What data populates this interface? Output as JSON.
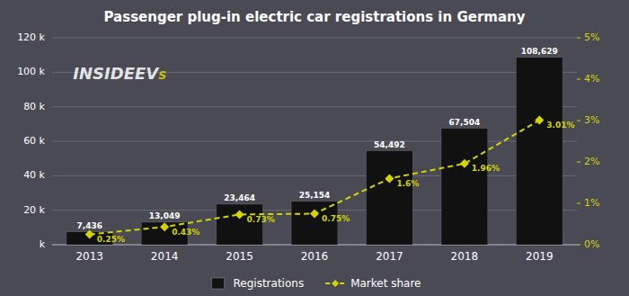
{
  "chart_data": {
    "type": "bar",
    "title": "Passenger plug-in electric car registrations in Germany",
    "categories": [
      "2013",
      "2014",
      "2015",
      "2016",
      "2017",
      "2018",
      "2019"
    ],
    "series": [
      {
        "name": "Registrations",
        "type": "bar",
        "color": "#111111",
        "values": [
          7436,
          13049,
          23464,
          25154,
          54492,
          67504,
          108629
        ],
        "value_labels": [
          "7,436",
          "13,049",
          "23,464",
          "25,154",
          "54,492",
          "67,504",
          "108,629"
        ]
      },
      {
        "name": "Market share",
        "type": "line",
        "axis": "y2",
        "color": "#d4d400",
        "marker": "diamond",
        "line_style": "dashed",
        "values": [
          0.25,
          0.43,
          0.73,
          0.75,
          1.6,
          1.96,
          3.01
        ],
        "value_labels": [
          "0.25%",
          "0.43%",
          "0.73%",
          "0.75%",
          "1.6%",
          "1.96%",
          "3.01%"
        ]
      }
    ],
    "ylim": [
      0,
      120000
    ],
    "yticks": [
      {
        "value": 0,
        "label": "k"
      },
      {
        "value": 20000,
        "label": "20 k"
      },
      {
        "value": 40000,
        "label": "40 k"
      },
      {
        "value": 60000,
        "label": "60 k"
      },
      {
        "value": 80000,
        "label": "80 k"
      },
      {
        "value": 100000,
        "label": "100 k"
      },
      {
        "value": 120000,
        "label": "120 k"
      }
    ],
    "y2lim": [
      0,
      5
    ],
    "y2ticks": [
      {
        "value": 0,
        "label": "0%"
      },
      {
        "value": 1,
        "label": "1%"
      },
      {
        "value": 2,
        "label": "2%"
      },
      {
        "value": 3,
        "label": "3%"
      },
      {
        "value": 4,
        "label": "4%"
      },
      {
        "value": 5,
        "label": "5%"
      }
    ],
    "grid": true,
    "legend": "bottom",
    "data_labels": true,
    "annotations": [
      "INSIDE",
      "EV",
      "s"
    ]
  }
}
